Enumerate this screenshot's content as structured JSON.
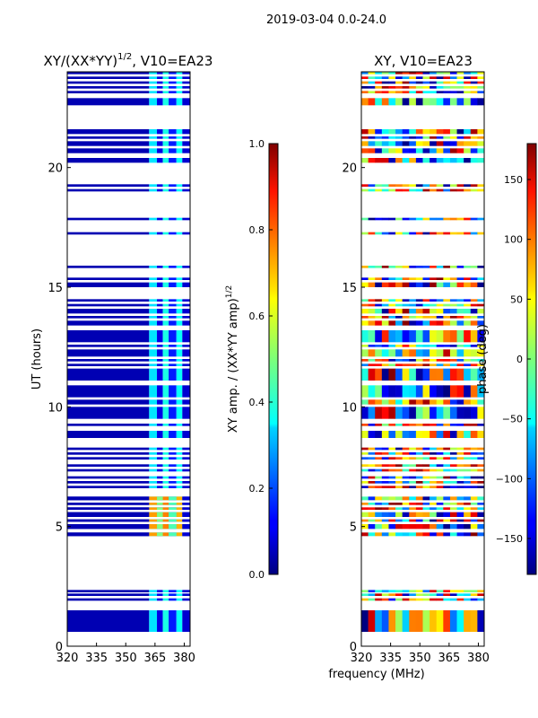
{
  "figure": {
    "suptitle": "2019-03-04 0.0-24.0",
    "shared_xlabel": "frequency (MHz)"
  },
  "chart_data": [
    {
      "type": "heatmap",
      "title_main": "XY/(XX*YY)",
      "title_sup": "1/2",
      "title_suffix": ", V10=EA23",
      "xlabel": "",
      "ylabel": "UT (hours)",
      "x_ticks": [
        320,
        335,
        350,
        365,
        380
      ],
      "y_ticks": [
        0,
        5,
        10,
        15,
        20
      ],
      "xlim": [
        320,
        383
      ],
      "ylim": [
        0,
        24
      ],
      "colorbar": {
        "label_main": "XY amp. / (XX*YY amp)",
        "label_sup": "1/2",
        "range": [
          0.0,
          1.0
        ],
        "ticks": [
          "0.0",
          "0.2",
          "0.4",
          "0.6",
          "0.8",
          "1.0"
        ],
        "tick_values": [
          0.0,
          0.2,
          0.4,
          0.6,
          0.8,
          1.0
        ],
        "colormap": "jet"
      },
      "freq_bands": [
        {
          "from": 320,
          "to": 362,
          "value": 0.05
        },
        {
          "from": 362,
          "to": 366,
          "value": 0.35
        },
        {
          "from": 366,
          "to": 369,
          "value": 0.1
        },
        {
          "from": 369,
          "to": 372,
          "value": 0.4
        },
        {
          "from": 372,
          "to": 376,
          "value": 0.15
        },
        {
          "from": 376,
          "to": 379,
          "value": 0.38
        },
        {
          "from": 379,
          "to": 383,
          "value": 0.08
        }
      ],
      "time_segments": [
        [
          0.6,
          1.5
        ],
        [
          1.9,
          2.0
        ],
        [
          2.1,
          2.2
        ],
        [
          2.25,
          2.35
        ],
        [
          4.6,
          4.75
        ],
        [
          4.9,
          5.1
        ],
        [
          5.2,
          5.3
        ],
        [
          5.4,
          5.6
        ],
        [
          5.7,
          5.8
        ],
        [
          5.9,
          6.0
        ],
        [
          6.1,
          6.25
        ],
        [
          6.6,
          6.7
        ],
        [
          6.8,
          6.9
        ],
        [
          7.0,
          7.1
        ],
        [
          7.3,
          7.4
        ],
        [
          7.5,
          7.6
        ],
        [
          7.8,
          7.9
        ],
        [
          8.0,
          8.1
        ],
        [
          8.2,
          8.3
        ],
        [
          8.7,
          9.0
        ],
        [
          9.2,
          9.3
        ],
        [
          9.5,
          10.0
        ],
        [
          10.1,
          10.3
        ],
        [
          10.4,
          10.9
        ],
        [
          11.1,
          11.6
        ],
        [
          11.7,
          11.8
        ],
        [
          11.9,
          12.0
        ],
        [
          12.1,
          12.4
        ],
        [
          12.5,
          12.6
        ],
        [
          12.7,
          13.2
        ],
        [
          13.4,
          13.6
        ],
        [
          13.7,
          13.8
        ],
        [
          13.9,
          14.1
        ],
        [
          14.2,
          14.3
        ],
        [
          14.4,
          14.5
        ],
        [
          15.0,
          15.2
        ],
        [
          15.3,
          15.4
        ],
        [
          15.8,
          15.9
        ],
        [
          17.2,
          17.3
        ],
        [
          17.8,
          17.9
        ],
        [
          19.0,
          19.1
        ],
        [
          19.2,
          19.3
        ],
        [
          20.2,
          20.4
        ],
        [
          20.6,
          20.8
        ],
        [
          20.9,
          21.1
        ],
        [
          21.2,
          21.3
        ],
        [
          21.4,
          21.6
        ],
        [
          22.6,
          22.9
        ],
        [
          23.1,
          23.2
        ],
        [
          23.3,
          23.4
        ],
        [
          23.5,
          23.6
        ],
        [
          23.7,
          23.8
        ],
        [
          23.9,
          24.0
        ]
      ],
      "highlight_rows": [
        {
          "from": 4.6,
          "to": 6.25,
          "values": [
            0.05,
            0.72,
            0.5,
            0.75,
            0.45,
            0.7,
            0.08
          ]
        },
        {
          "from": 9.8,
          "to": 10.0,
          "values": [
            0.05,
            0.55,
            0.2,
            0.65,
            0.3,
            0.5,
            0.08
          ]
        }
      ]
    },
    {
      "type": "heatmap",
      "title": "XY, V10=EA23",
      "xlabel": "",
      "ylabel": "",
      "x_ticks": [
        320,
        335,
        350,
        365,
        380
      ],
      "y_ticks": [
        0,
        5,
        10,
        15,
        20
      ],
      "xlim": [
        320,
        383
      ],
      "ylim": [
        0,
        24
      ],
      "colorbar": {
        "label": "phase (deg)",
        "range": [
          -180,
          180
        ],
        "ticks": [
          "150",
          "100",
          "50",
          "0",
          "−50",
          "−100",
          "−150"
        ],
        "tick_values": [
          150,
          100,
          50,
          0,
          -50,
          -100,
          -150
        ],
        "colormap": "jet"
      },
      "time_segments": [
        [
          0.6,
          1.5
        ],
        [
          1.9,
          2.0
        ],
        [
          2.1,
          2.2
        ],
        [
          2.25,
          2.35
        ],
        [
          4.6,
          4.75
        ],
        [
          4.9,
          5.1
        ],
        [
          5.2,
          5.3
        ],
        [
          5.4,
          5.6
        ],
        [
          5.7,
          5.8
        ],
        [
          5.9,
          6.0
        ],
        [
          6.1,
          6.25
        ],
        [
          6.6,
          6.7
        ],
        [
          6.8,
          6.9
        ],
        [
          7.0,
          7.1
        ],
        [
          7.3,
          7.4
        ],
        [
          7.5,
          7.6
        ],
        [
          7.8,
          7.9
        ],
        [
          8.0,
          8.1
        ],
        [
          8.2,
          8.3
        ],
        [
          8.7,
          9.0
        ],
        [
          9.2,
          9.3
        ],
        [
          9.5,
          10.0
        ],
        [
          10.1,
          10.3
        ],
        [
          10.4,
          10.9
        ],
        [
          11.1,
          11.6
        ],
        [
          11.7,
          11.8
        ],
        [
          11.9,
          12.0
        ],
        [
          12.1,
          12.4
        ],
        [
          12.5,
          12.6
        ],
        [
          12.7,
          13.2
        ],
        [
          13.4,
          13.6
        ],
        [
          13.7,
          13.8
        ],
        [
          13.9,
          14.1
        ],
        [
          14.2,
          14.3
        ],
        [
          14.4,
          14.5
        ],
        [
          15.0,
          15.2
        ],
        [
          15.3,
          15.4
        ],
        [
          15.8,
          15.9
        ],
        [
          17.2,
          17.3
        ],
        [
          17.8,
          17.9
        ],
        [
          19.0,
          19.1
        ],
        [
          19.2,
          19.3
        ],
        [
          20.2,
          20.4
        ],
        [
          20.6,
          20.8
        ],
        [
          20.9,
          21.1
        ],
        [
          21.2,
          21.3
        ],
        [
          21.4,
          21.6
        ],
        [
          22.6,
          22.9
        ],
        [
          23.1,
          23.2
        ],
        [
          23.3,
          23.4
        ],
        [
          23.5,
          23.6
        ],
        [
          23.7,
          23.8
        ],
        [
          23.9,
          24.0
        ]
      ],
      "phase_sample": {
        "freq_cells": 18,
        "seed": 7
      }
    }
  ]
}
